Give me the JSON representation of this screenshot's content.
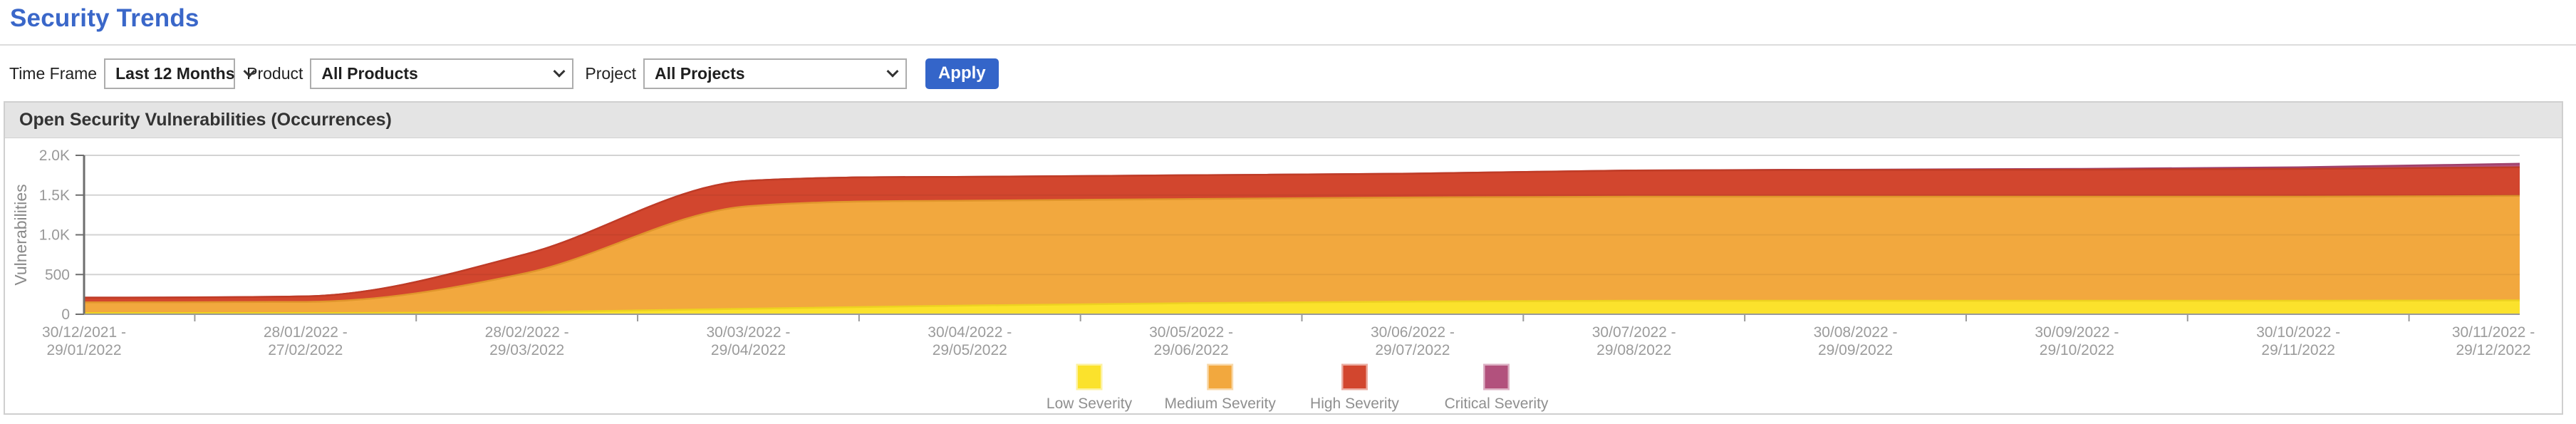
{
  "page": {
    "title": "Security Trends"
  },
  "filters": {
    "time_frame": {
      "label": "Time Frame",
      "value": "Last 12 Months"
    },
    "product": {
      "label": "Product",
      "value": "All Products"
    },
    "project": {
      "label": "Project",
      "value": "All Projects"
    },
    "apply_label": "Apply"
  },
  "panel": {
    "title": "Open Security Vulnerabilities (Occurrences)"
  },
  "chart_data": {
    "type": "area",
    "stacked": true,
    "title": "Open Security Vulnerabilities (Occurrences)",
    "xlabel": "",
    "ylabel": "Vulnerabilities",
    "ylim": [
      0,
      2000
    ],
    "grid": true,
    "legend_position": "bottom",
    "yticks": [
      {
        "value": 0,
        "label": "0"
      },
      {
        "value": 500,
        "label": "500"
      },
      {
        "value": 1000,
        "label": "1.0K"
      },
      {
        "value": 1500,
        "label": "1.5K"
      },
      {
        "value": 2000,
        "label": "2.0K"
      }
    ],
    "categories": [
      "30/12/2021 - 29/01/2022",
      "28/01/2022 - 27/02/2022",
      "28/02/2022 - 29/03/2022",
      "30/03/2022 - 29/04/2022",
      "30/04/2022 - 29/05/2022",
      "30/05/2022 - 29/06/2022",
      "30/06/2022 - 29/07/2022",
      "30/07/2022 - 29/08/2022",
      "30/08/2022 - 29/09/2022",
      "30/09/2022 - 29/10/2022",
      "30/10/2022 - 29/11/2022",
      "30/11/2022 - 29/12/2022"
    ],
    "series": [
      {
        "name": "Low Severity",
        "color": "#FBE22C",
        "edge": "#EDD220",
        "values": [
          15,
          15,
          25,
          70,
          110,
          140,
          160,
          170,
          170,
          170,
          170,
          175
        ]
      },
      {
        "name": "Medium Severity",
        "color": "#F2A83E",
        "edge": "#E0962C",
        "values": [
          135,
          140,
          495,
          1290,
          1320,
          1310,
          1310,
          1310,
          1310,
          1310,
          1310,
          1315
        ]
      },
      {
        "name": "High Severity",
        "color": "#D2462E",
        "edge": "#C03C26",
        "values": [
          60,
          70,
          240,
          320,
          300,
          300,
          300,
          330,
          335,
          340,
          350,
          360
        ]
      },
      {
        "name": "Critical Severity",
        "color": "#B2517D",
        "edge": "#9F416C",
        "values": [
          0,
          0,
          0,
          0,
          0,
          0,
          0,
          0,
          5,
          10,
          20,
          45
        ]
      }
    ],
    "axis_color": "#6e6e6e",
    "baseline_color": "#9a9a9a",
    "grid_color": "#e0e0e0",
    "tick_label_color": "#999999",
    "axis_title_color": "#8a8a8a"
  }
}
